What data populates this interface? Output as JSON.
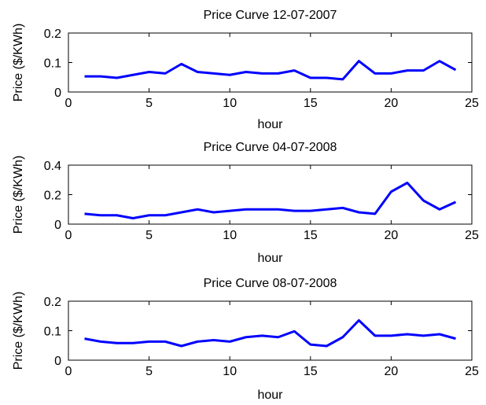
{
  "colors": {
    "line": "#0000ff",
    "axes": "#000000",
    "background": "#ffffff"
  },
  "chart_data": [
    {
      "type": "line",
      "title": "Price Curve 12-07-2007",
      "xlabel": "hour",
      "ylabel": "Price ($/KWh)",
      "xlim": [
        0,
        25
      ],
      "ylim": [
        0,
        0.2
      ],
      "xticks": [
        0,
        5,
        10,
        15,
        20,
        25
      ],
      "yticks": [
        0,
        0.1,
        0.2
      ],
      "grid": false,
      "series": [
        {
          "x": [
            1,
            2,
            3,
            4,
            5,
            6,
            7,
            8,
            9,
            10,
            11,
            12,
            13,
            14,
            15,
            16,
            17,
            18,
            19,
            20,
            21,
            22,
            23,
            24
          ],
          "values": [
            0.053,
            0.053,
            0.048,
            0.058,
            0.068,
            0.063,
            0.095,
            0.068,
            0.063,
            0.058,
            0.068,
            0.063,
            0.063,
            0.073,
            0.048,
            0.048,
            0.043,
            0.105,
            0.063,
            0.063,
            0.073,
            0.073,
            0.105,
            0.075
          ]
        }
      ]
    },
    {
      "type": "line",
      "title": "Price Curve 04-07-2008",
      "xlabel": "hour",
      "ylabel": "Price ($/KWh)",
      "xlim": [
        0,
        25
      ],
      "ylim": [
        0,
        0.4
      ],
      "xticks": [
        0,
        5,
        10,
        15,
        20,
        25
      ],
      "yticks": [
        0,
        0.2,
        0.4
      ],
      "grid": false,
      "series": [
        {
          "x": [
            1,
            2,
            3,
            4,
            5,
            6,
            7,
            8,
            9,
            10,
            11,
            12,
            13,
            14,
            15,
            16,
            17,
            18,
            19,
            20,
            21,
            22,
            23,
            24
          ],
          "values": [
            0.07,
            0.06,
            0.06,
            0.04,
            0.06,
            0.06,
            0.08,
            0.1,
            0.08,
            0.09,
            0.1,
            0.1,
            0.1,
            0.09,
            0.09,
            0.1,
            0.11,
            0.08,
            0.07,
            0.22,
            0.28,
            0.16,
            0.1,
            0.15
          ]
        }
      ]
    },
    {
      "type": "line",
      "title": "Price Curve 08-07-2008",
      "xlabel": "hour",
      "ylabel": "Price ($/KWh)",
      "xlim": [
        0,
        25
      ],
      "ylim": [
        0,
        0.2
      ],
      "xticks": [
        0,
        5,
        10,
        15,
        20,
        25
      ],
      "yticks": [
        0,
        0.1,
        0.2
      ],
      "grid": false,
      "series": [
        {
          "x": [
            1,
            2,
            3,
            4,
            5,
            6,
            7,
            8,
            9,
            10,
            11,
            12,
            13,
            14,
            15,
            16,
            17,
            18,
            19,
            20,
            21,
            22,
            23,
            24
          ],
          "values": [
            0.073,
            0.063,
            0.058,
            0.058,
            0.063,
            0.063,
            0.048,
            0.063,
            0.068,
            0.063,
            0.078,
            0.083,
            0.078,
            0.098,
            0.053,
            0.048,
            0.078,
            0.135,
            0.083,
            0.083,
            0.088,
            0.083,
            0.088,
            0.073
          ]
        }
      ]
    }
  ]
}
